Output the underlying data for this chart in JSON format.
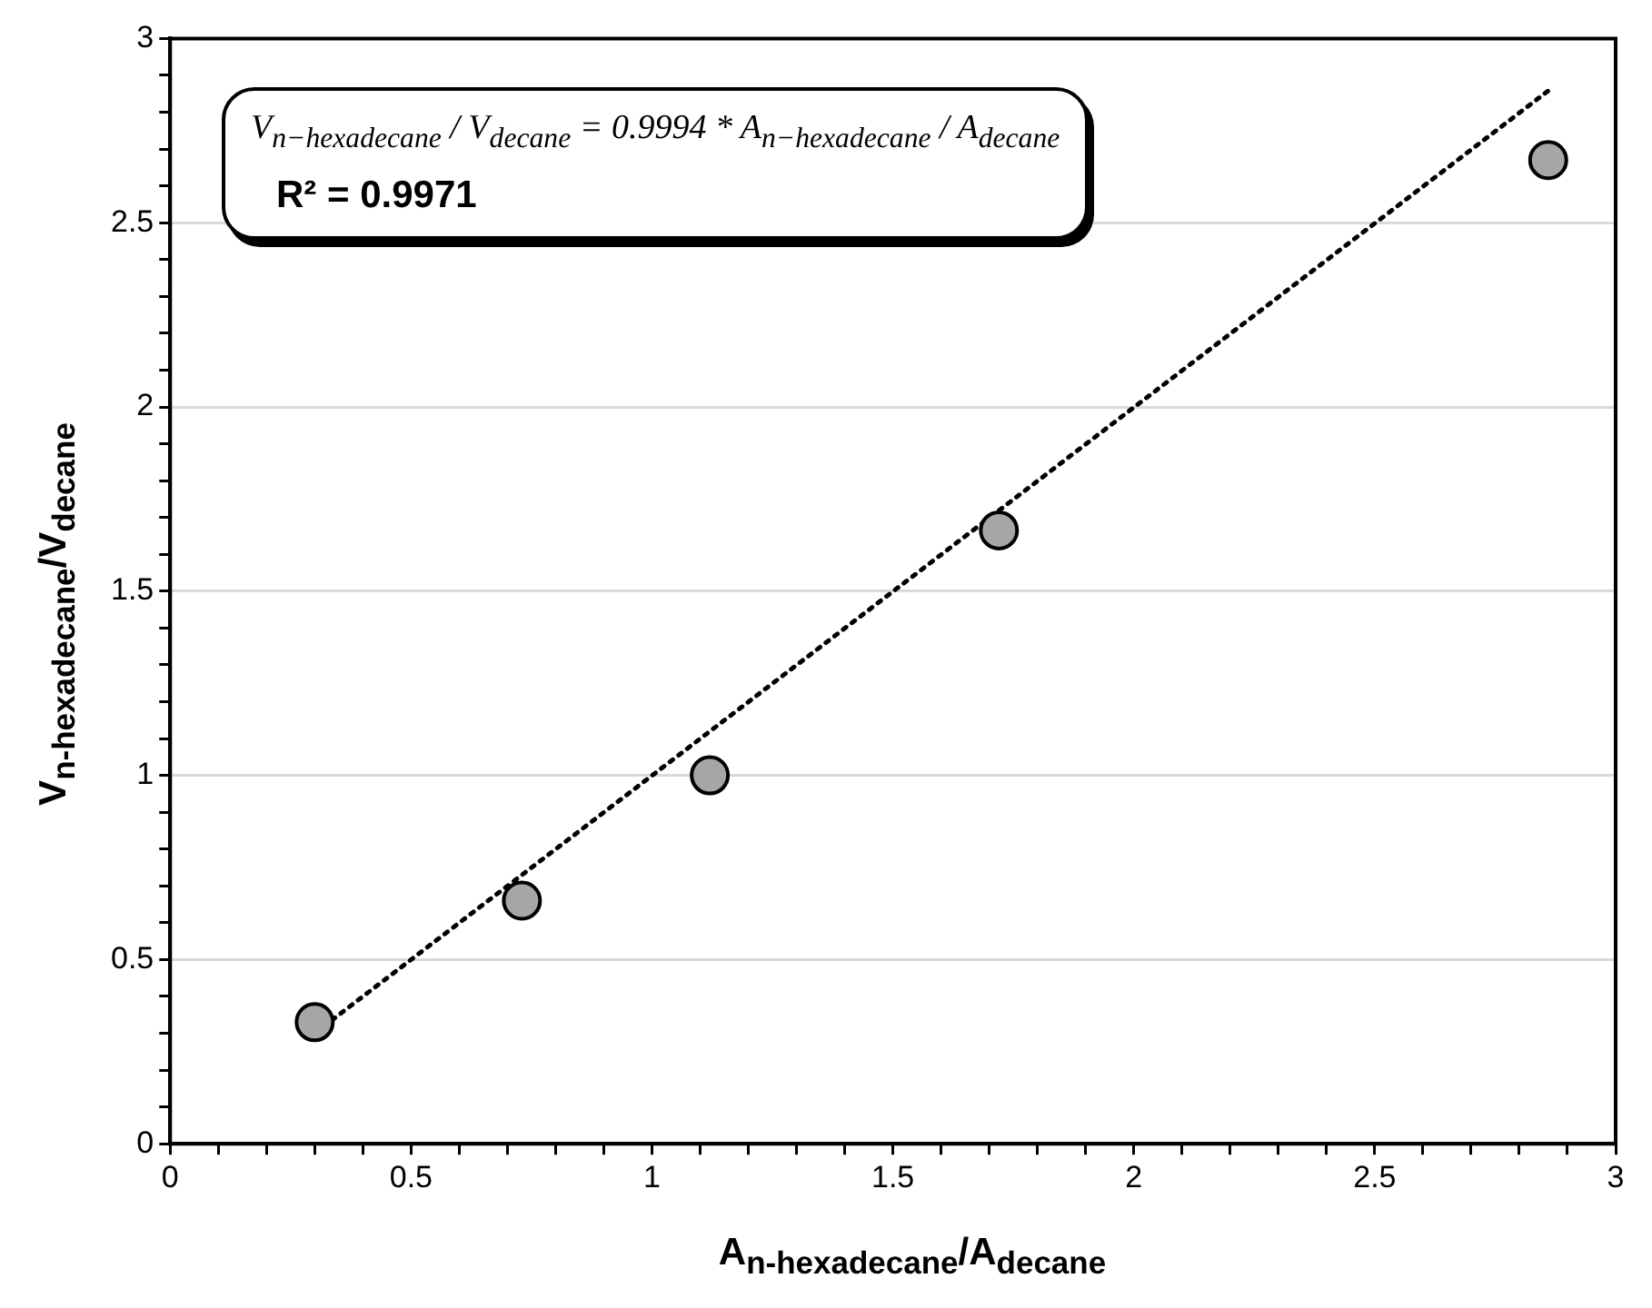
{
  "chart_data": {
    "type": "scatter",
    "xlabel": "A$_{n-hexadecane}$/A$_{decane}$",
    "ylabel": "V$_{n-hexadecane}$/V$_{decane}$",
    "annotations": [
      "V$_{n−hexadecane}$ / V$_{decane}$ = 0.9994 * A$_{n−hexadecane}$ / A$_{decane}$",
      "R² = 0.9971"
    ],
    "xlim": [
      0,
      3
    ],
    "ylim": [
      0,
      3
    ],
    "xticks": [
      0,
      {
        "value": 0.1,
        "label": null
      },
      {
        "value": 0.2,
        "label": null
      },
      {
        "value": 0.3,
        "label": null
      },
      {
        "value": 0.4,
        "label": null
      },
      0.5,
      {
        "value": 0.6,
        "label": null
      },
      {
        "value": 0.7,
        "label": null
      },
      {
        "value": 0.8,
        "label": null
      },
      {
        "value": 0.9,
        "label": null
      },
      1,
      {
        "value": 1.1,
        "label": null
      },
      {
        "value": 1.2,
        "label": null
      },
      {
        "value": 1.3,
        "label": null
      },
      {
        "value": 1.4,
        "label": null
      },
      1.5,
      {
        "value": 1.6,
        "label": null
      },
      {
        "value": 1.7,
        "label": null
      },
      {
        "value": 1.8,
        "label": null
      },
      {
        "value": 1.9,
        "label": null
      },
      2,
      {
        "value": 2.1,
        "label": null
      },
      {
        "value": 2.2,
        "label": null
      },
      {
        "value": 2.3,
        "label": null
      },
      {
        "value": 2.4,
        "label": null
      },
      2.5,
      {
        "value": 2.6,
        "label": null
      },
      {
        "value": 2.7,
        "label": null
      },
      {
        "value": 2.8,
        "label": null
      },
      {
        "value": 2.9,
        "label": null
      },
      3
    ],
    "yticks": [
      0,
      {
        "value": 0.1,
        "label": null
      },
      {
        "value": 0.2,
        "label": null
      },
      {
        "value": 0.3,
        "label": null
      },
      {
        "value": 0.4,
        "label": null
      },
      0.5,
      {
        "value": 0.6,
        "label": null
      },
      {
        "value": 0.7,
        "label": null
      },
      {
        "value": 0.8,
        "label": null
      },
      {
        "value": 0.9,
        "label": null
      },
      1,
      {
        "value": 1.1,
        "label": null
      },
      {
        "value": 1.2,
        "label": null
      },
      {
        "value": 1.3,
        "label": null
      },
      {
        "value": 1.4,
        "label": null
      },
      1.5,
      {
        "value": 1.6,
        "label": null
      },
      {
        "value": 1.7,
        "label": null
      },
      {
        "value": 1.8,
        "label": null
      },
      {
        "value": 1.9,
        "label": null
      },
      2,
      {
        "value": 2.1,
        "label": null
      },
      {
        "value": 2.2,
        "label": null
      },
      {
        "value": 2.3,
        "label": null
      },
      {
        "value": 2.4,
        "label": null
      },
      2.5,
      {
        "value": 2.6,
        "label": null
      },
      {
        "value": 2.7,
        "label": null
      },
      {
        "value": 2.8,
        "label": null
      },
      {
        "value": 2.9,
        "label": null
      },
      3
    ],
    "grid": "y",
    "legend": false,
    "series": [
      {
        "color": "#a6a6a6",
        "marker": "circle",
        "x": [
          0.3,
          0.73,
          1.12,
          1.72,
          2.86
        ],
        "values": [
          0.33,
          0.66,
          1.0,
          1.665,
          2.67
        ]
      },
      {
        "type": "line",
        "color": "#000000",
        "marker": "none",
        "line_style": "dotted",
        "x": [
          0.3,
          2.86
        ],
        "values": [
          0.3,
          2.858
        ]
      }
    ]
  }
}
